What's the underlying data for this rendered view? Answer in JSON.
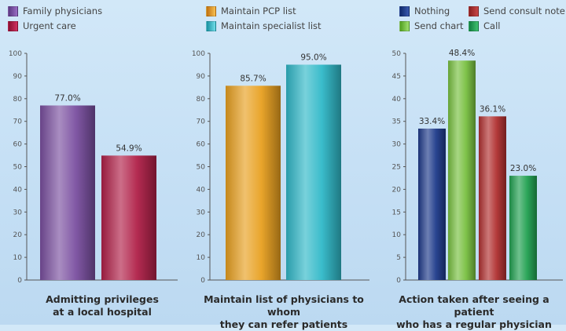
{
  "legends": [
    {
      "label": "Family physicians",
      "color": "#7a4fa0"
    },
    {
      "label": "Urgent care",
      "color": "#b02048"
    },
    {
      "label": "Maintain PCP list",
      "color": "#e8a020"
    },
    {
      "label": "Maintain specialist list",
      "color": "#30b8c8"
    },
    {
      "label": "Nothing",
      "color": "#1e3a8a"
    },
    {
      "label": "Send consult note",
      "color": "#b03030"
    },
    {
      "label": "Send chart",
      "color": "#78c040"
    },
    {
      "label": "Call",
      "color": "#20a050"
    }
  ],
  "chart_data": [
    {
      "type": "bar",
      "title": "Admitting privileges\nat a local hospital",
      "ylim": [
        0,
        100
      ],
      "yticks": [
        "0",
        "10",
        "20",
        "30",
        "40",
        "50",
        "60",
        "70",
        "80",
        "90",
        "100"
      ],
      "series": [
        {
          "name": "Family physicians",
          "value": 77.0,
          "label": "77.0%",
          "color": "#7a4fa0"
        },
        {
          "name": "Urgent care",
          "value": 54.9,
          "label": "54.9%",
          "color": "#b02048"
        }
      ]
    },
    {
      "type": "bar",
      "title": "Maintain list of physicians to whom\nthey can refer patients",
      "ylim": [
        0,
        100
      ],
      "yticks": [
        "0",
        "10",
        "20",
        "30",
        "40",
        "50",
        "60",
        "70",
        "80",
        "90",
        "100"
      ],
      "series": [
        {
          "name": "Maintain PCP list",
          "value": 85.7,
          "label": "85.7%",
          "color": "#e8a020"
        },
        {
          "name": "Maintain specialist list",
          "value": 95.0,
          "label": "95.0%",
          "color": "#30b8c8"
        }
      ]
    },
    {
      "type": "bar",
      "title": "Action taken after seeing a patient\nwho has a regular physician",
      "ylim": [
        0,
        50
      ],
      "yticks": [
        "0",
        "5",
        "10",
        "15",
        "20",
        "25",
        "30",
        "35",
        "40",
        "45",
        "50"
      ],
      "series": [
        {
          "name": "Nothing",
          "value": 33.4,
          "label": "33.4%",
          "color": "#1e3a8a"
        },
        {
          "name": "Send chart",
          "value": 48.4,
          "label": "48.4%",
          "color": "#78c040"
        },
        {
          "name": "Send consult note",
          "value": 36.1,
          "label": "36.1%",
          "color": "#b03030"
        },
        {
          "name": "Call",
          "value": 23.0,
          "label": "23.0%",
          "color": "#20a050"
        }
      ]
    }
  ]
}
